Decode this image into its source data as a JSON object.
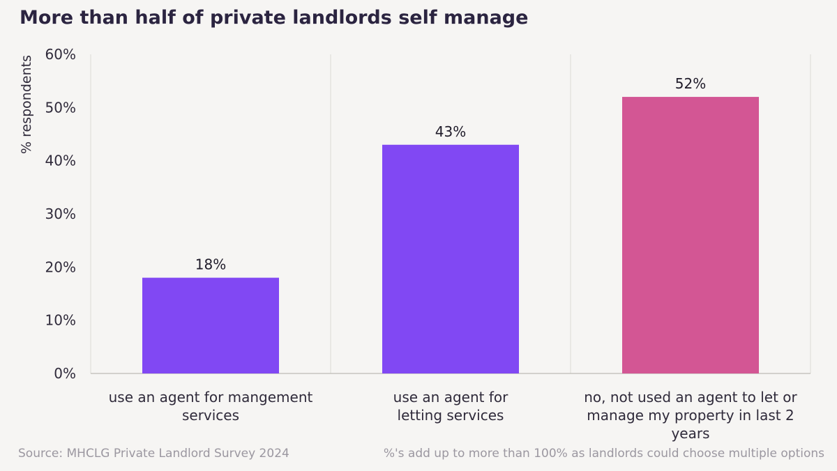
{
  "title": "More than half of private landlords self manage",
  "footer": {
    "source": "Source: MHCLG Private Landlord Survey 2024",
    "note": "%'s add up to more than 100% as landlords could choose multiple options"
  },
  "colors": {
    "agent_bar": "#8148f3",
    "self_manage_bar": "#d35694",
    "background": "#f6f5f3",
    "title_text": "#2b2440",
    "footer_text": "#9b97a0"
  },
  "chart_data": {
    "type": "bar",
    "title": "More than half of private landlords self manage",
    "ylabel": "% respondents",
    "xlabel": "",
    "ylim": [
      0,
      60
    ],
    "yticks": [
      "0%",
      "10%",
      "20%",
      "30%",
      "40%",
      "50%",
      "60%"
    ],
    "ytick_values": [
      0,
      10,
      20,
      30,
      40,
      50,
      60
    ],
    "categories": [
      [
        "use an agent for mangement",
        "services"
      ],
      [
        "use an agent for",
        "letting services"
      ],
      [
        "no, not used an agent to let or",
        "manage my property in last 2",
        "years"
      ]
    ],
    "values": [
      18,
      43,
      52
    ],
    "value_labels": [
      "18%",
      "43%",
      "52%"
    ],
    "bar_colors": [
      "#8148f3",
      "#8148f3",
      "#d35694"
    ],
    "grid": "vertical separators between categories",
    "legend": "none"
  }
}
